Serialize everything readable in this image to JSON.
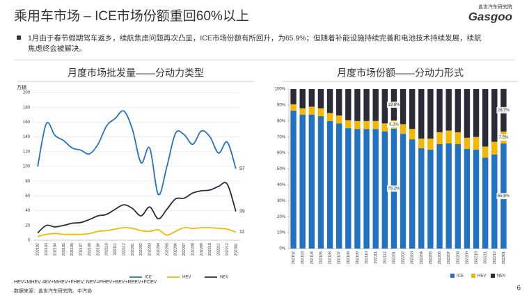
{
  "header": {
    "title": "乘用车市场 – ICE市场份额重回60%以上",
    "bullet_line1": "1月由于春节假期驾车返乡，续航焦虑问题再次凸显，ICE市场份额有所回升，为65.9%；但随着补能设施持续完善和电池技术持续发展，续航",
    "bullet_line2": "焦虑终会被解决。"
  },
  "logo": {
    "cn": "盖世汽车研究院",
    "en": "Gasgoo"
  },
  "footer": {
    "definition": "HEV=MHEV 48V+MHEV+FHEV; NEV=PHEV+BEV+REEV+FCEV",
    "source": "数据来源：盖世汽车研究院、中汽协",
    "page": "6"
  },
  "chart_data": [
    {
      "type": "line",
      "title": "月度市场批发量——分动力类型",
      "y_label": "万辆",
      "categories": [
        "202102",
        "202103",
        "202104",
        "202105",
        "202106",
        "202107",
        "202108",
        "202109",
        "202110",
        "202111",
        "202112",
        "202201",
        "202202",
        "202203",
        "202204",
        "202205",
        "202206",
        "202207",
        "202208",
        "202209",
        "202210",
        "202211",
        "202212",
        "202301"
      ],
      "series": [
        {
          "name": "ICE",
          "color": "#2272c3",
          "values": [
            100,
            158,
            142,
            135,
            125,
            122,
            117,
            130,
            155,
            165,
            175,
            150,
            105,
            125,
            62,
            100,
            145,
            143,
            130,
            148,
            140,
            118,
            133,
            97
          ]
        },
        {
          "name": "HEV",
          "color": "#f5b800",
          "values": [
            5,
            8,
            9,
            8,
            8,
            8,
            9,
            12,
            13,
            15,
            17,
            16,
            13,
            12,
            14,
            7,
            12,
            17,
            16,
            17,
            17,
            16,
            15,
            11
          ]
        },
        {
          "name": "NEV",
          "color": "#2b2b38",
          "values": [
            10,
            20,
            18,
            20,
            23,
            24,
            28,
            33,
            35,
            42,
            48,
            43,
            33,
            45,
            29,
            42,
            56,
            57,
            64,
            67,
            68,
            73,
            76,
            39
          ]
        }
      ],
      "ylim": [
        0,
        200
      ],
      "yticks": [
        0,
        20,
        40,
        60,
        80,
        100,
        120,
        140,
        160,
        180,
        200
      ],
      "grid": true,
      "legend": "bottom"
    },
    {
      "type": "bar",
      "stacked": true,
      "title": "月度市场份额——分动力形式",
      "categories": [
        "202102",
        "202103",
        "202104",
        "202105",
        "202106",
        "202107",
        "202108",
        "202109",
        "202110",
        "202111",
        "202112",
        "202201",
        "202202",
        "202203",
        "202204",
        "202205",
        "202206",
        "202207",
        "202208",
        "202209",
        "202210",
        "202211",
        "202212",
        "202301"
      ],
      "series": [
        {
          "name": "ICE",
          "color": "#2272c3",
          "values": [
            86.5,
            84,
            84,
            83,
            80,
            78.5,
            75.5,
            75,
            75,
            75,
            73.5,
            75.2,
            72,
            68.5,
            63,
            62,
            65.5,
            66,
            65.5,
            62.5,
            62,
            57,
            59,
            65.9
          ],
          "value_labels": [
            null,
            null,
            null,
            null,
            null,
            null,
            null,
            null,
            null,
            null,
            null,
            "75.2%",
            null,
            null,
            null,
            null,
            null,
            null,
            null,
            null,
            null,
            null,
            null,
            "65.9%"
          ]
        },
        {
          "name": "HEV",
          "color": "#f5b800",
          "values": [
            4,
            4,
            5,
            5,
            5,
            5,
            5,
            5,
            5,
            5,
            5,
            5.2,
            6,
            6.5,
            6,
            7,
            7.5,
            8,
            7.5,
            7,
            8,
            7,
            8,
            7.5
          ],
          "value_labels": [
            null,
            null,
            null,
            null,
            null,
            null,
            null,
            null,
            null,
            null,
            null,
            "5.2%",
            null,
            null,
            null,
            null,
            null,
            null,
            null,
            null,
            null,
            null,
            null,
            "7.5%"
          ]
        },
        {
          "name": "NEV",
          "color": "#2b2b38",
          "values": [
            9.5,
            12,
            11,
            12,
            15,
            16.5,
            19.5,
            20,
            20,
            20,
            21.5,
            19.6,
            22,
            25,
            31,
            31,
            27,
            26,
            27,
            30.5,
            30,
            36,
            33,
            26.7
          ],
          "value_labels": [
            null,
            null,
            null,
            null,
            null,
            null,
            null,
            null,
            null,
            null,
            null,
            "19.6%",
            null,
            null,
            null,
            null,
            null,
            null,
            null,
            null,
            null,
            null,
            null,
            "26.7%"
          ]
        }
      ],
      "ylim": [
        0,
        100
      ],
      "yticks": [
        {
          "value": 0,
          "label": "0%"
        },
        {
          "value": 10,
          "label": "10%"
        },
        {
          "value": 20,
          "label": "20%"
        },
        {
          "value": 30,
          "label": "30%"
        },
        {
          "value": 40,
          "label": "40%"
        },
        {
          "value": 50,
          "label": "50%"
        },
        {
          "value": 60,
          "label": "60%"
        },
        {
          "value": 70,
          "label": "70%"
        },
        {
          "value": 80,
          "label": "80%"
        },
        {
          "value": 90,
          "label": "90%"
        },
        {
          "value": 100,
          "label": "100%"
        }
      ],
      "grid": false,
      "legend": "bottom"
    }
  ]
}
